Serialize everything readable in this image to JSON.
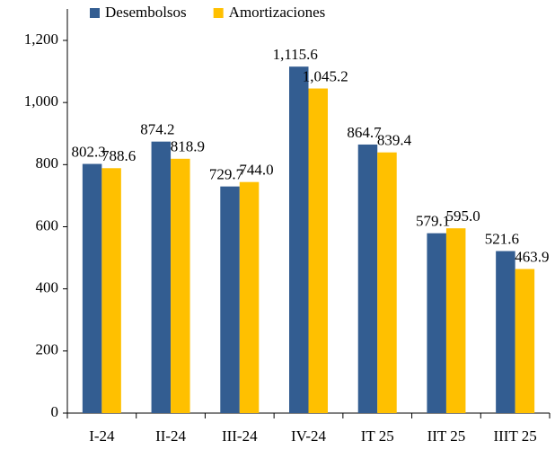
{
  "chart_data": {
    "type": "bar",
    "categories": [
      "I-24",
      "II-24",
      "III-24",
      "IV-24",
      "IT 25",
      "IIT 25",
      "IIIT 25"
    ],
    "series": [
      {
        "name": "Desembolsos",
        "color": "#335d91",
        "values": [
          802.3,
          874.2,
          729.7,
          1115.6,
          864.7,
          579.1,
          521.6
        ],
        "value_labels": [
          "802.3",
          "874.2",
          "729.7",
          "1,115.6",
          "864.7",
          "579.1",
          "521.6"
        ]
      },
      {
        "name": "Amortizaciones",
        "color": "#ffc000",
        "values": [
          788.6,
          818.9,
          744.0,
          1045.2,
          839.4,
          595.0,
          463.9
        ],
        "value_labels": [
          "788.6",
          "818.9",
          "744.0",
          "1,045.2",
          "839.4",
          "595.0",
          "463.9"
        ]
      }
    ],
    "ylim": [
      0,
      1200
    ],
    "yticks": [
      0,
      200,
      400,
      600,
      800,
      {
        "value": 1000,
        "label": "1,000"
      },
      {
        "value": 1200,
        "label": "1,200"
      }
    ],
    "legend": "top"
  }
}
